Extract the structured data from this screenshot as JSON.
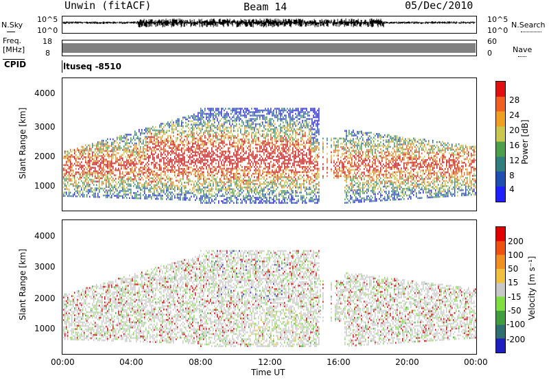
{
  "header": {
    "station": "Unwin (fitACF)",
    "beam": "Beam 14",
    "date": "05/Dec/2010"
  },
  "strips": {
    "nsky_label": "N.Sky",
    "nsky_top": "10^5",
    "nsky_bottom": "10^0",
    "nsearch_label": "N.Search",
    "nsearch_top": "10^5",
    "nsearch_bottom": "10^0",
    "freq_label_1": "Freq.",
    "freq_label_2": "[MHz]",
    "freq_top": "18",
    "freq_bottom": "8",
    "nave_label": "Nave",
    "nave_top": "60",
    "nave_bottom": "0",
    "cpid_label": "CPID",
    "cpid_value": "ltuseq -8510"
  },
  "chart_data": [
    {
      "type": "heatmap",
      "ylabel": "Slant Range [km]",
      "ylim": [
        200,
        4600
      ],
      "yticks": [
        "1000",
        "2000",
        "3000",
        "4000"
      ],
      "colorbar_label": "Power [dB]",
      "colorbar_ticks": [
        "4",
        "8",
        "12",
        "16",
        "20",
        "24",
        "28"
      ],
      "colors": [
        "#1f1fff",
        "#1f4fb0",
        "#2f7f7f",
        "#4ca04c",
        "#c8c84f",
        "#f0a020",
        "#f06020",
        "#e01010"
      ]
    },
    {
      "type": "heatmap",
      "ylabel": "Slant Range [km]",
      "ylim": [
        200,
        4600
      ],
      "yticks": [
        "1000",
        "2000",
        "3000",
        "4000"
      ],
      "colorbar_label": "Velocity [m s⁻¹]",
      "colorbar_ticks": [
        "200",
        "100",
        "50",
        "15",
        "-15",
        "-50",
        "-100",
        "-200"
      ],
      "colors": [
        "#1f1fbf",
        "#2f6f6f",
        "#3f9f3f",
        "#7fdf3f",
        "#c8c8c8",
        "#f0c040",
        "#f09020",
        "#f05010",
        "#e00000"
      ]
    }
  ],
  "xaxis": {
    "ticks": [
      "00:00",
      "04:00",
      "08:00",
      "12:00",
      "16:00",
      "20:00",
      "00:00"
    ],
    "label": "Time UT"
  }
}
